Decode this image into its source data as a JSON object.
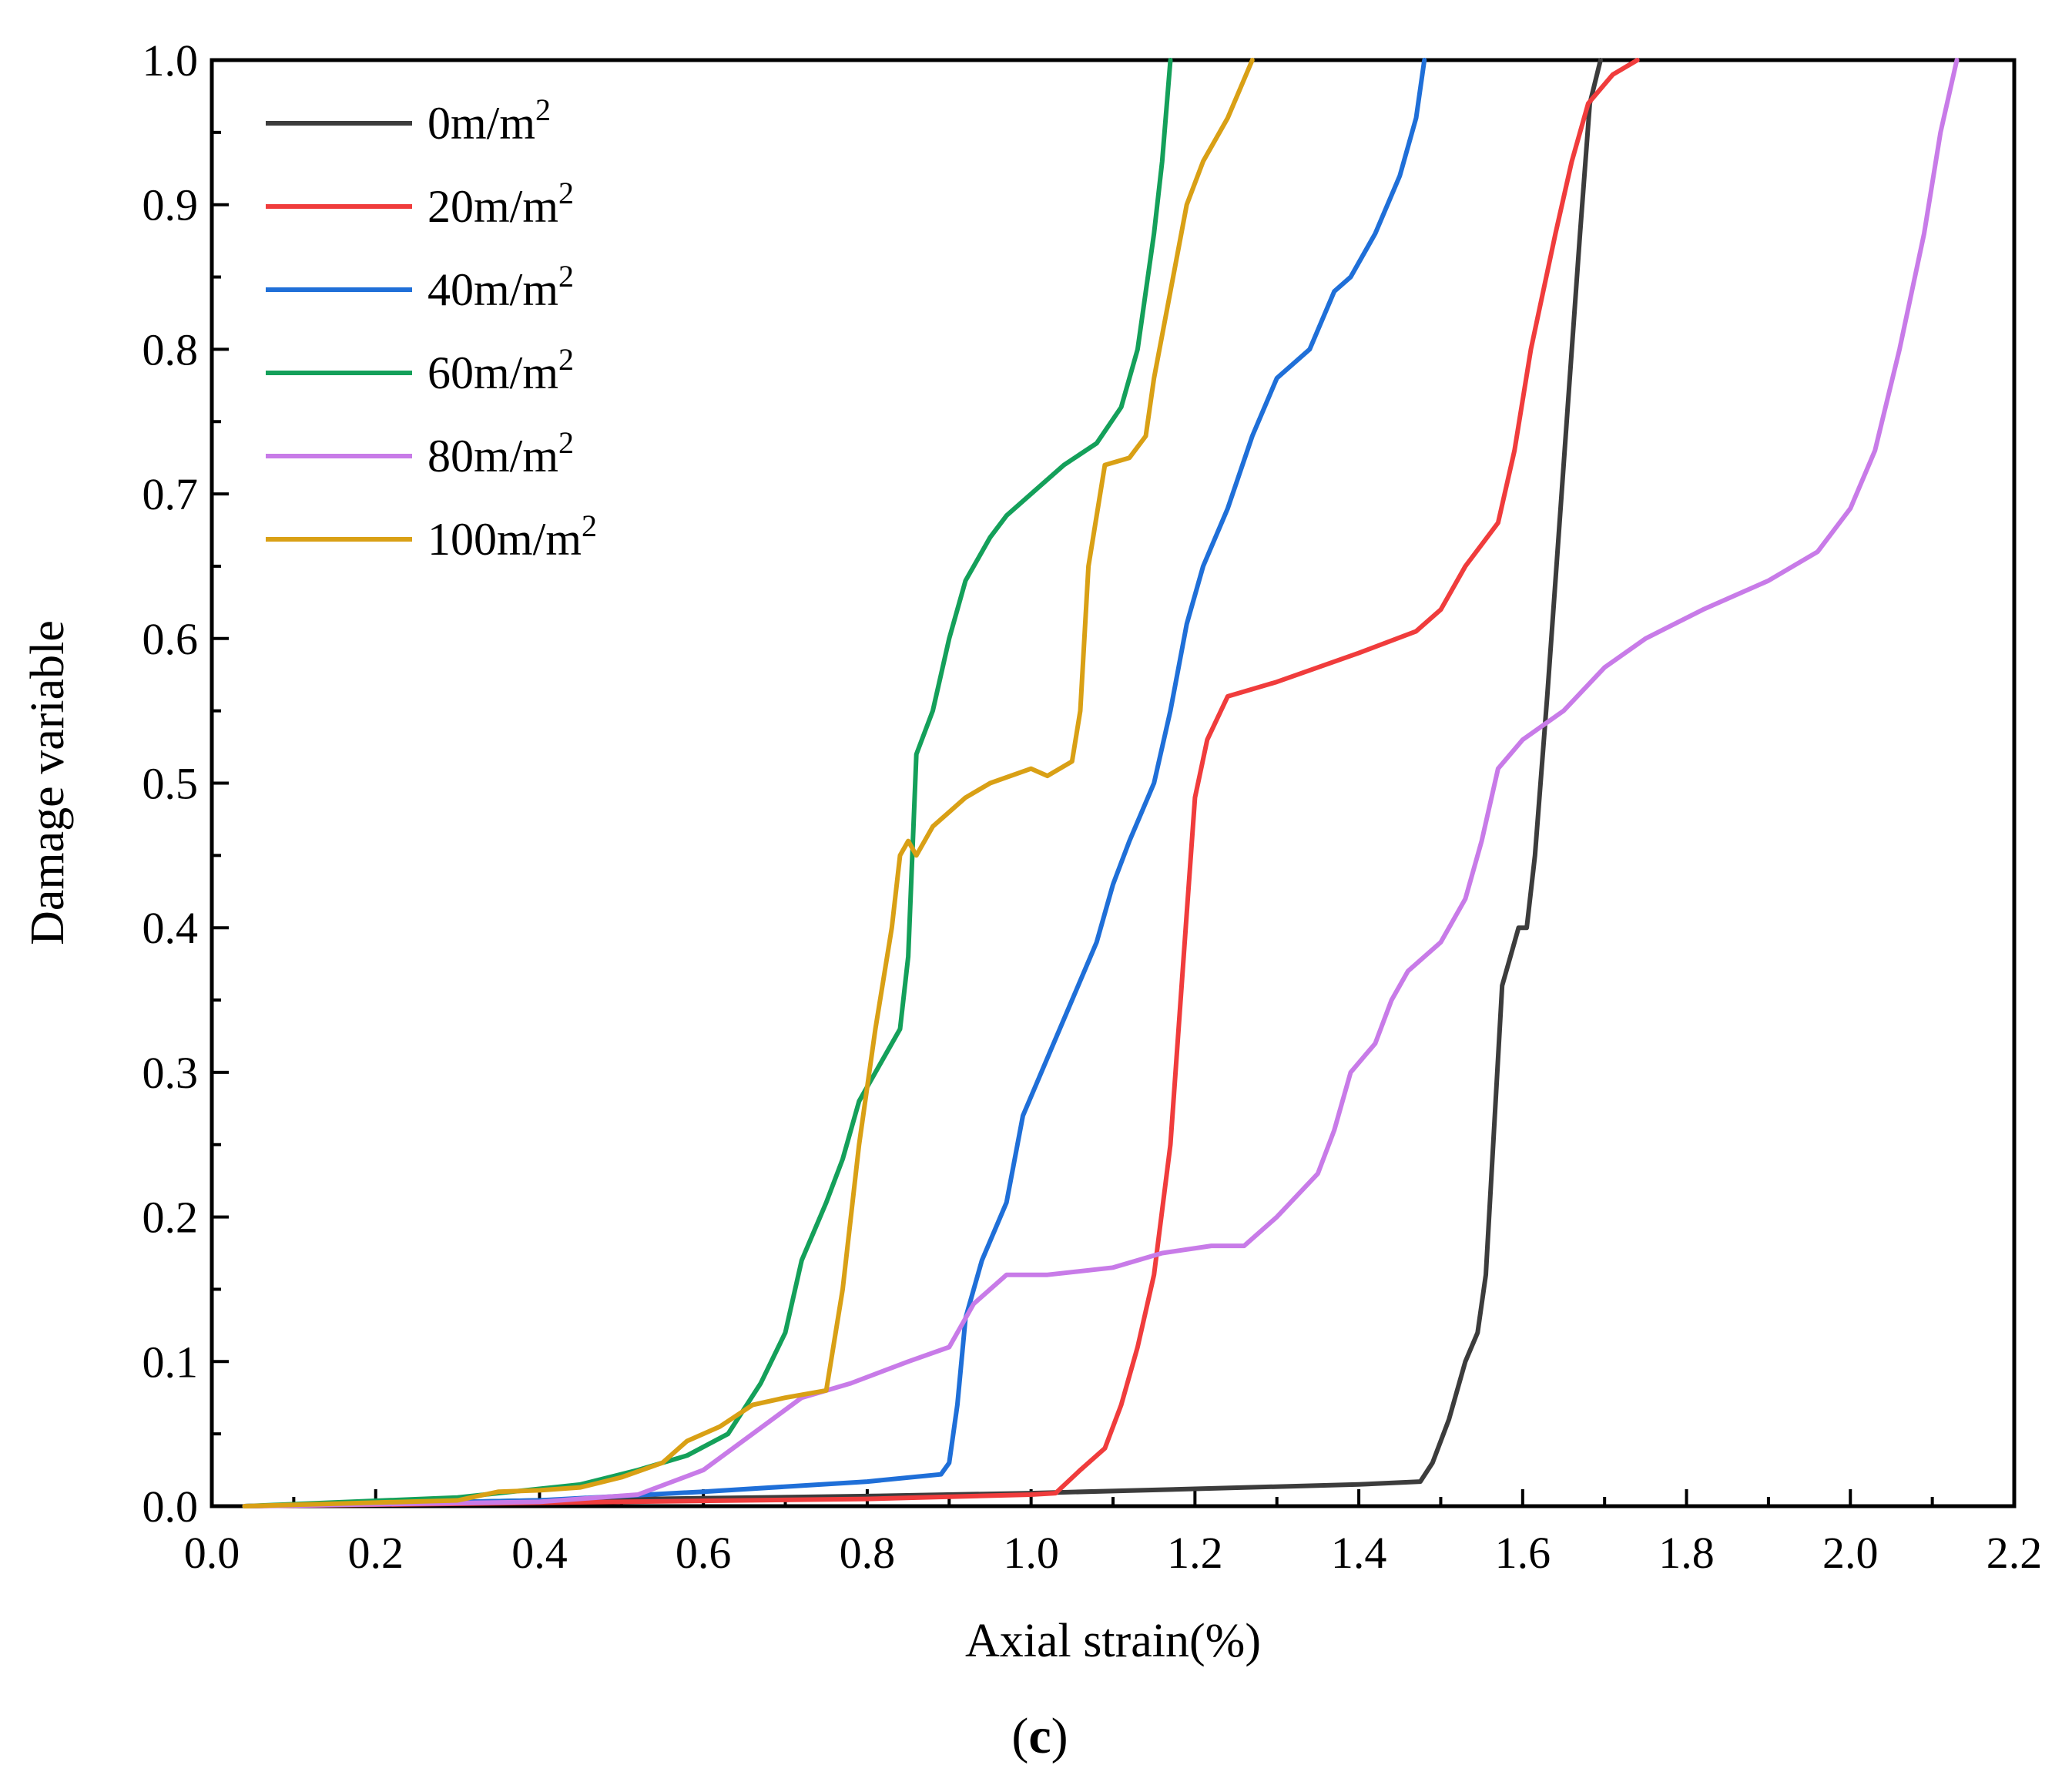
{
  "chart_data": {
    "type": "line",
    "title": "",
    "xlabel": "Axial strain(%)",
    "ylabel": "Damage variable",
    "xlim": [
      0.0,
      2.2
    ],
    "ylim": [
      0.0,
      1.0
    ],
    "x_ticks": [
      "0.0",
      "0.2",
      "0.4",
      "0.6",
      "0.8",
      "1.0",
      "1.2",
      "1.4",
      "1.6",
      "1.8",
      "2.0",
      "2.2"
    ],
    "y_ticks": [
      "0.0",
      "0.1",
      "0.2",
      "0.3",
      "0.4",
      "0.5",
      "0.6",
      "0.7",
      "0.8",
      "0.9",
      "1.0"
    ],
    "grid": false,
    "legend_position": "top-left",
    "caption": {
      "open": "(",
      "letter": "c",
      "close": ")"
    },
    "series": [
      {
        "name": "0m/m²",
        "label_base": "0m/m",
        "label_sup": "2",
        "color": "#3c3c3c",
        "points": [
          [
            0.04,
            0.0
          ],
          [
            0.4,
            0.004
          ],
          [
            0.8,
            0.007
          ],
          [
            1.0,
            0.009
          ],
          [
            1.2,
            0.012
          ],
          [
            1.4,
            0.015
          ],
          [
            1.475,
            0.017
          ],
          [
            1.49,
            0.03
          ],
          [
            1.51,
            0.06
          ],
          [
            1.53,
            0.1
          ],
          [
            1.545,
            0.12
          ],
          [
            1.555,
            0.16
          ],
          [
            1.565,
            0.26
          ],
          [
            1.575,
            0.36
          ],
          [
            1.585,
            0.38
          ],
          [
            1.595,
            0.4
          ],
          [
            1.605,
            0.4
          ],
          [
            1.615,
            0.45
          ],
          [
            1.63,
            0.56
          ],
          [
            1.64,
            0.64
          ],
          [
            1.655,
            0.76
          ],
          [
            1.67,
            0.88
          ],
          [
            1.682,
            0.97
          ],
          [
            1.695,
            1.0
          ]
        ]
      },
      {
        "name": "20m/m²",
        "label_base": "20m/m",
        "label_sup": "2",
        "color": "#f03c3c",
        "points": [
          [
            0.04,
            0.0
          ],
          [
            0.5,
            0.003
          ],
          [
            0.8,
            0.005
          ],
          [
            1.0,
            0.008
          ],
          [
            1.03,
            0.009
          ],
          [
            1.06,
            0.025
          ],
          [
            1.09,
            0.04
          ],
          [
            1.11,
            0.07
          ],
          [
            1.13,
            0.11
          ],
          [
            1.15,
            0.16
          ],
          [
            1.17,
            0.25
          ],
          [
            1.18,
            0.33
          ],
          [
            1.19,
            0.41
          ],
          [
            1.2,
            0.49
          ],
          [
            1.215,
            0.53
          ],
          [
            1.24,
            0.56
          ],
          [
            1.3,
            0.57
          ],
          [
            1.4,
            0.59
          ],
          [
            1.47,
            0.605
          ],
          [
            1.5,
            0.62
          ],
          [
            1.53,
            0.65
          ],
          [
            1.57,
            0.68
          ],
          [
            1.59,
            0.73
          ],
          [
            1.61,
            0.8
          ],
          [
            1.64,
            0.88
          ],
          [
            1.66,
            0.93
          ],
          [
            1.68,
            0.97
          ],
          [
            1.71,
            0.99
          ],
          [
            1.74,
            1.0
          ]
        ]
      },
      {
        "name": "40m/m²",
        "label_base": "40m/m",
        "label_sup": "2",
        "color": "#1f6fd8",
        "points": [
          [
            0.04,
            0.0
          ],
          [
            0.4,
            0.004
          ],
          [
            0.6,
            0.01
          ],
          [
            0.8,
            0.017
          ],
          [
            0.89,
            0.022
          ],
          [
            0.9,
            0.03
          ],
          [
            0.91,
            0.07
          ],
          [
            0.92,
            0.13
          ],
          [
            0.94,
            0.17
          ],
          [
            0.97,
            0.21
          ],
          [
            0.99,
            0.27
          ],
          [
            1.02,
            0.31
          ],
          [
            1.05,
            0.35
          ],
          [
            1.08,
            0.39
          ],
          [
            1.1,
            0.43
          ],
          [
            1.12,
            0.46
          ],
          [
            1.15,
            0.5
          ],
          [
            1.17,
            0.55
          ],
          [
            1.19,
            0.61
          ],
          [
            1.21,
            0.65
          ],
          [
            1.24,
            0.69
          ],
          [
            1.27,
            0.74
          ],
          [
            1.3,
            0.78
          ],
          [
            1.34,
            0.8
          ],
          [
            1.37,
            0.84
          ],
          [
            1.39,
            0.85
          ],
          [
            1.42,
            0.88
          ],
          [
            1.45,
            0.92
          ],
          [
            1.47,
            0.96
          ],
          [
            1.48,
            1.0
          ]
        ]
      },
      {
        "name": "60m/m²",
        "label_base": "60m/m",
        "label_sup": "2",
        "color": "#14a05a",
        "points": [
          [
            0.04,
            0.0
          ],
          [
            0.3,
            0.006
          ],
          [
            0.45,
            0.015
          ],
          [
            0.52,
            0.025
          ],
          [
            0.58,
            0.035
          ],
          [
            0.63,
            0.05
          ],
          [
            0.67,
            0.085
          ],
          [
            0.7,
            0.12
          ],
          [
            0.72,
            0.17
          ],
          [
            0.75,
            0.21
          ],
          [
            0.77,
            0.24
          ],
          [
            0.79,
            0.28
          ],
          [
            0.82,
            0.31
          ],
          [
            0.84,
            0.33
          ],
          [
            0.85,
            0.38
          ],
          [
            0.86,
            0.52
          ],
          [
            0.88,
            0.55
          ],
          [
            0.9,
            0.6
          ],
          [
            0.92,
            0.64
          ],
          [
            0.95,
            0.67
          ],
          [
            0.97,
            0.685
          ],
          [
            1.0,
            0.7
          ],
          [
            1.04,
            0.72
          ],
          [
            1.08,
            0.735
          ],
          [
            1.11,
            0.76
          ],
          [
            1.13,
            0.8
          ],
          [
            1.15,
            0.88
          ],
          [
            1.16,
            0.93
          ],
          [
            1.17,
            1.0
          ]
        ]
      },
      {
        "name": "80m/m²",
        "label_base": "80m/m",
        "label_sup": "2",
        "color": "#c87be8",
        "points": [
          [
            0.04,
            0.0
          ],
          [
            0.4,
            0.003
          ],
          [
            0.52,
            0.008
          ],
          [
            0.6,
            0.025
          ],
          [
            0.66,
            0.05
          ],
          [
            0.72,
            0.075
          ],
          [
            0.78,
            0.085
          ],
          [
            0.85,
            0.1
          ],
          [
            0.9,
            0.11
          ],
          [
            0.93,
            0.14
          ],
          [
            0.97,
            0.16
          ],
          [
            1.02,
            0.16
          ],
          [
            1.1,
            0.165
          ],
          [
            1.16,
            0.175
          ],
          [
            1.22,
            0.18
          ],
          [
            1.26,
            0.18
          ],
          [
            1.3,
            0.2
          ],
          [
            1.35,
            0.23
          ],
          [
            1.37,
            0.26
          ],
          [
            1.39,
            0.3
          ],
          [
            1.42,
            0.32
          ],
          [
            1.44,
            0.35
          ],
          [
            1.46,
            0.37
          ],
          [
            1.5,
            0.39
          ],
          [
            1.53,
            0.42
          ],
          [
            1.55,
            0.46
          ],
          [
            1.57,
            0.51
          ],
          [
            1.6,
            0.53
          ],
          [
            1.65,
            0.55
          ],
          [
            1.7,
            0.58
          ],
          [
            1.75,
            0.6
          ],
          [
            1.82,
            0.62
          ],
          [
            1.9,
            0.64
          ],
          [
            1.96,
            0.66
          ],
          [
            2.0,
            0.69
          ],
          [
            2.03,
            0.73
          ],
          [
            2.06,
            0.8
          ],
          [
            2.09,
            0.88
          ],
          [
            2.11,
            0.95
          ],
          [
            2.13,
            1.0
          ]
        ]
      },
      {
        "name": "100m/m²",
        "label_base": "100m/m",
        "label_sup": "2",
        "color": "#d9a015",
        "points": [
          [
            0.04,
            0.0
          ],
          [
            0.3,
            0.004
          ],
          [
            0.35,
            0.01
          ],
          [
            0.4,
            0.011
          ],
          [
            0.45,
            0.013
          ],
          [
            0.5,
            0.02
          ],
          [
            0.55,
            0.03
          ],
          [
            0.58,
            0.045
          ],
          [
            0.62,
            0.055
          ],
          [
            0.66,
            0.07
          ],
          [
            0.7,
            0.075
          ],
          [
            0.75,
            0.08
          ],
          [
            0.77,
            0.15
          ],
          [
            0.79,
            0.25
          ],
          [
            0.81,
            0.33
          ],
          [
            0.83,
            0.4
          ],
          [
            0.84,
            0.45
          ],
          [
            0.85,
            0.46
          ],
          [
            0.86,
            0.45
          ],
          [
            0.88,
            0.47
          ],
          [
            0.9,
            0.48
          ],
          [
            0.92,
            0.49
          ],
          [
            0.95,
            0.5
          ],
          [
            1.0,
            0.51
          ],
          [
            1.02,
            0.505
          ],
          [
            1.05,
            0.515
          ],
          [
            1.06,
            0.55
          ],
          [
            1.07,
            0.65
          ],
          [
            1.09,
            0.72
          ],
          [
            1.12,
            0.725
          ],
          [
            1.14,
            0.74
          ],
          [
            1.15,
            0.78
          ],
          [
            1.17,
            0.84
          ],
          [
            1.19,
            0.9
          ],
          [
            1.21,
            0.93
          ],
          [
            1.24,
            0.96
          ],
          [
            1.27,
            1.0
          ]
        ]
      }
    ]
  }
}
